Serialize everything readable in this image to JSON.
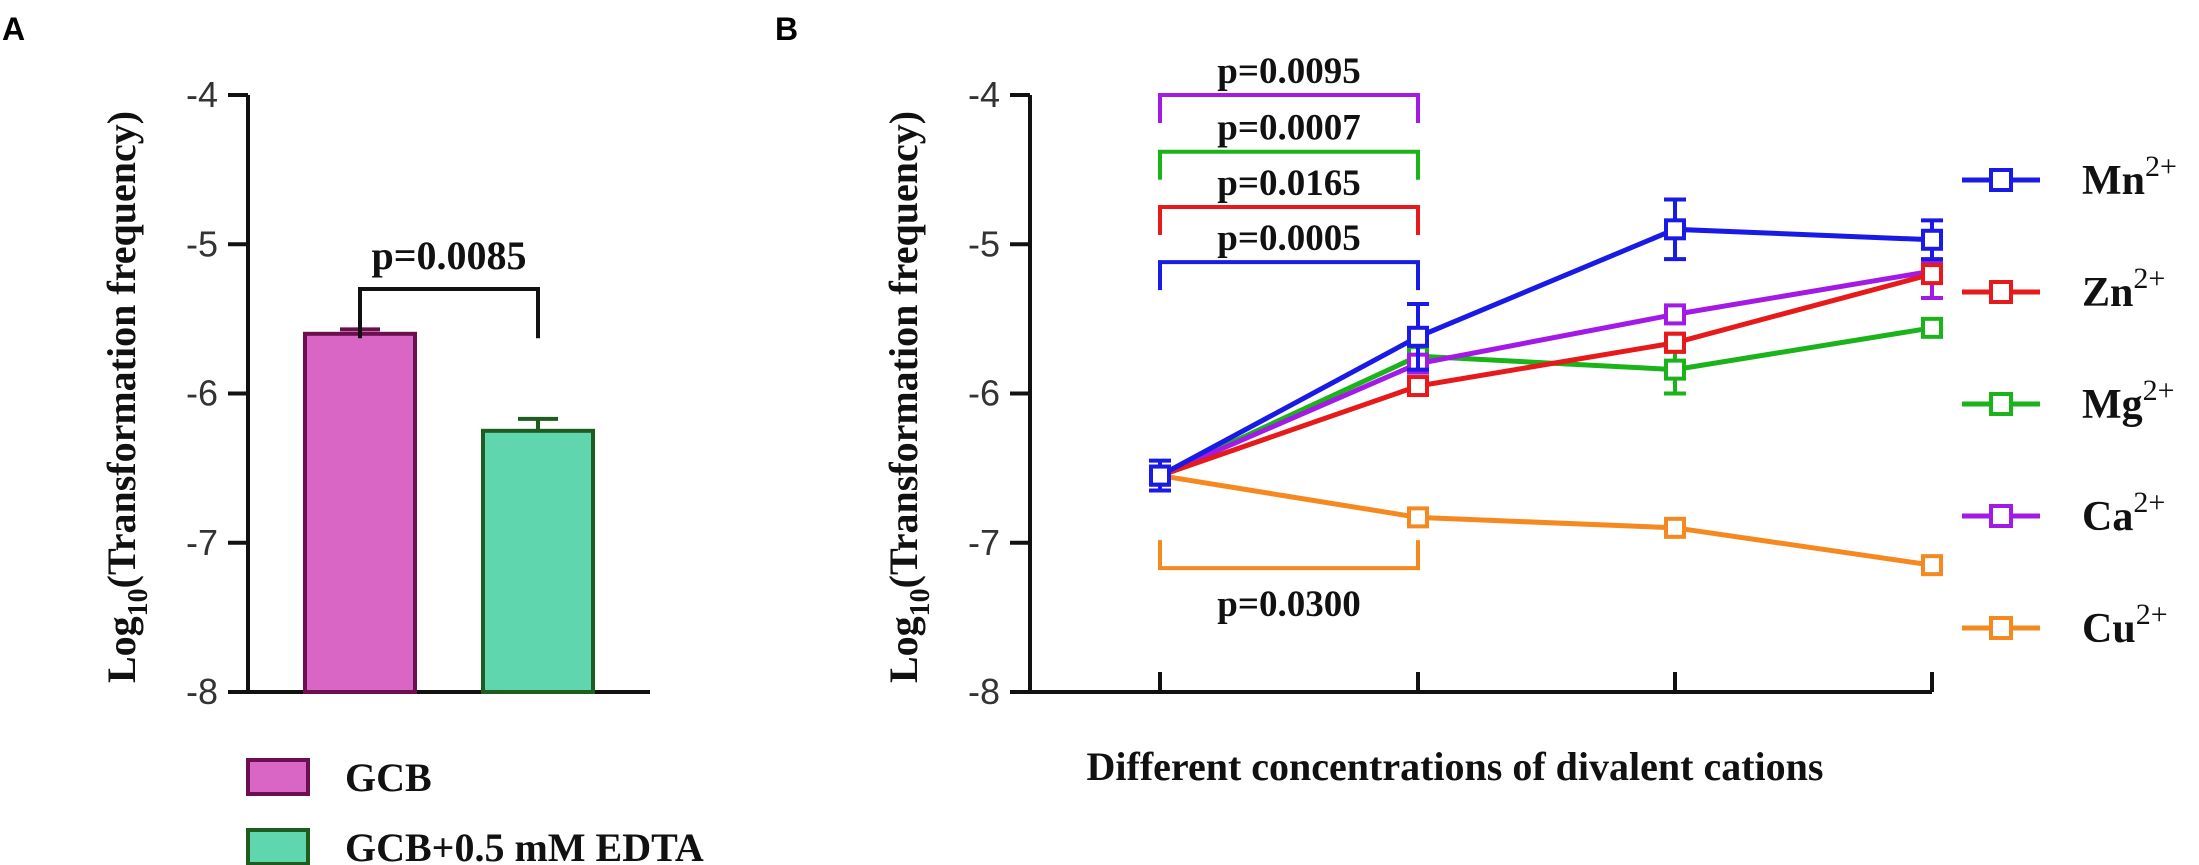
{
  "chart_data": [
    {
      "panel": "A",
      "type": "bar",
      "ylabel": "Log10(Transformation frequency)",
      "ylabel_main": "Log",
      "ylabel_sub": "10",
      "ylabel_rest": "(Transformation frequency)",
      "ylim": [
        -8,
        -4
      ],
      "yticks": [
        "-4",
        "-5",
        "-6",
        "-7",
        "-8"
      ],
      "categories": [
        "GCB",
        "GCB+0.5 mM EDTA"
      ],
      "values": [
        -5.6,
        -6.25
      ],
      "errors": [
        0.03,
        0.08
      ],
      "colors": [
        "#d966c4",
        "#5fd6ae"
      ],
      "edge_colors": [
        "#6b0f4f",
        "#1f5c1f"
      ],
      "annotations": [
        {
          "text": "p=0.0085",
          "between": [
            0,
            1
          ]
        }
      ],
      "legend": [
        "GCB",
        "GCB+0.5 mM EDTA"
      ]
    },
    {
      "panel": "B",
      "type": "line",
      "xlabel": "Different concentrations of divalent cations",
      "ylabel": "Log10(Transformation frequency)",
      "ylabel_main": "Log",
      "ylabel_sub": "10",
      "ylabel_rest": "(Transformation frequency)",
      "ylim": [
        -8,
        -4
      ],
      "yticks": [
        "-4",
        "-5",
        "-6",
        "-7",
        "-8"
      ],
      "x_positions": [
        1,
        2,
        3,
        4
      ],
      "series": [
        {
          "name": "Mn",
          "charge": "2+",
          "color": "#1a1ae6",
          "values": [
            -6.55,
            -5.62,
            -4.9,
            -4.97
          ],
          "errors": [
            0.1,
            0.22,
            0.2,
            0.13
          ]
        },
        {
          "name": "Zn",
          "charge": "2+",
          "color": "#e61a1a",
          "values": [
            -6.55,
            -5.95,
            -5.66,
            -5.2
          ],
          "errors": [
            0.0,
            0.05,
            0.06,
            0.05
          ]
        },
        {
          "name": "Mg",
          "charge": "2+",
          "color": "#1ab31a",
          "values": [
            -6.55,
            -5.75,
            -5.84,
            -5.56
          ],
          "errors": [
            0.0,
            0.06,
            0.16,
            0.04
          ]
        },
        {
          "name": "Ca",
          "charge": "2+",
          "color": "#a31ae6",
          "values": [
            -6.55,
            -5.8,
            -5.47,
            -5.18
          ],
          "errors": [
            0.0,
            0.04,
            0.05,
            0.18
          ]
        },
        {
          "name": "Cu",
          "charge": "2+",
          "color": "#f5891f",
          "values": [
            -6.55,
            -6.83,
            -6.9,
            -7.15
          ],
          "errors": [
            0.0,
            0.02,
            0.02,
            0.03
          ]
        }
      ],
      "annotations": [
        {
          "text": "p=0.0095",
          "color": "#a31ae6",
          "level": -4.0,
          "side": "above"
        },
        {
          "text": "p=0.0007",
          "color": "#1ab31a",
          "level": -4.38,
          "side": "above"
        },
        {
          "text": "p=0.0165",
          "color": "#e61a1a",
          "level": -4.75,
          "side": "above"
        },
        {
          "text": "p=0.0005",
          "color": "#1a1ae6",
          "level": -5.12,
          "side": "above"
        },
        {
          "text": "p=0.0300",
          "color": "#f5891f",
          "level": -7.17,
          "side": "below"
        }
      ]
    }
  ],
  "panel_labels": {
    "a": "A",
    "b": "B"
  }
}
